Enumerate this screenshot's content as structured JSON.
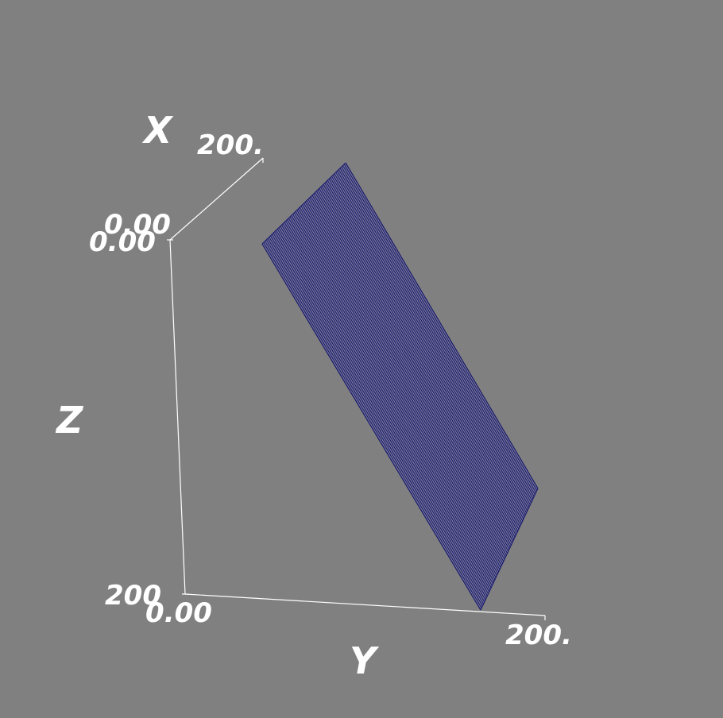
{
  "colors": {
    "background": "#808080",
    "axes": "#ffffff",
    "surface_fill": "#7a7a98",
    "surface_lines": "#1a1a6e"
  },
  "axes": {
    "x": {
      "title": "X",
      "min_label": "0.00",
      "max_label": "200."
    },
    "y": {
      "title": "Y",
      "min_label": "0.00",
      "max_label": "200."
    },
    "z": {
      "title": "Z",
      "min_label": "0.00",
      "max_label": "200"
    }
  },
  "surface": {
    "type": "planar-wireframe",
    "line_count": 60
  }
}
